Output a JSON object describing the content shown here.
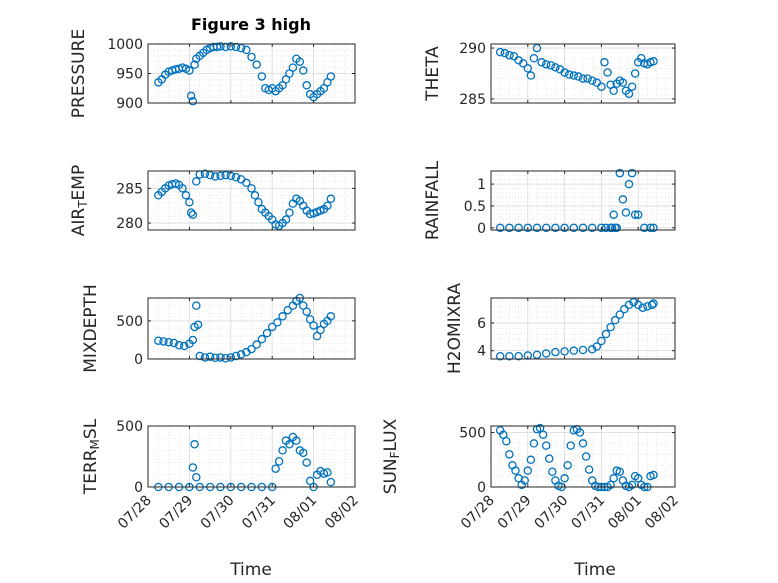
{
  "figure": {
    "title": "Figure 3 high"
  },
  "style": {
    "marker_color": "#0072BD",
    "axes_color": "#262626",
    "grid_color": "#d9d9d9"
  },
  "chart_data": [
    {
      "type": "scatter",
      "ylabel": "PRESSURE",
      "yticks": [
        "900",
        "950",
        "1000"
      ],
      "ylim": [
        900,
        1000
      ],
      "xlim": [
        "07/28",
        "08/02"
      ],
      "grid": true,
      "x": [
        "07/28 06:00",
        "07/28 08:00",
        "07/28 10:00",
        "07/28 12:00",
        "07/28 14:00",
        "07/28 16:00",
        "07/28 18:00",
        "07/28 20:00",
        "07/28 22:00",
        "07/29 00:00",
        "07/29 01:00",
        "07/29 02:00",
        "07/29 03:00",
        "07/29 04:00",
        "07/29 06:00",
        "07/29 08:00",
        "07/29 10:00",
        "07/29 12:00",
        "07/29 14:00",
        "07/29 16:00",
        "07/29 18:00",
        "07/29 21:00",
        "07/30 00:00",
        "07/30 03:00",
        "07/30 06:00",
        "07/30 09:00",
        "07/30 12:00",
        "07/30 15:00",
        "07/30 18:00",
        "07/30 20:00",
        "07/30 22:00",
        "07/31 00:00",
        "07/31 02:00",
        "07/31 04:00",
        "07/31 06:00",
        "07/31 08:00",
        "07/31 10:00",
        "07/31 12:00",
        "07/31 14:00",
        "07/31 16:00",
        "07/31 18:00",
        "07/31 20:00",
        "07/31 22:00",
        "08/01 00:00",
        "08/01 02:00",
        "08/01 04:00",
        "08/01 06:00",
        "08/01 08:00",
        "08/01 10:00"
      ],
      "y": [
        935,
        940,
        948,
        953,
        955,
        957,
        958,
        960,
        958,
        955,
        912,
        903,
        965,
        975,
        980,
        985,
        990,
        993,
        995,
        995,
        996,
        995,
        996,
        995,
        993,
        990,
        978,
        965,
        945,
        925,
        922,
        925,
        920,
        925,
        930,
        940,
        950,
        960,
        975,
        970,
        955,
        930,
        915,
        910,
        915,
        920,
        925,
        935,
        945
      ]
    },
    {
      "type": "scatter",
      "ylabel": "THETA",
      "yticks": [
        "285",
        "290"
      ],
      "ylim": [
        284.6,
        290.4
      ],
      "xlim": [
        "07/28",
        "08/02"
      ],
      "grid": true,
      "x": [
        "07/28 06:00",
        "07/28 09:00",
        "07/28 12:00",
        "07/28 15:00",
        "07/28 18:00",
        "07/28 21:00",
        "07/29 00:00",
        "07/29 02:00",
        "07/29 04:00",
        "07/29 06:00",
        "07/29 09:00",
        "07/29 12:00",
        "07/29 15:00",
        "07/29 18:00",
        "07/29 21:00",
        "07/30 00:00",
        "07/30 03:00",
        "07/30 06:00",
        "07/30 09:00",
        "07/30 12:00",
        "07/30 15:00",
        "07/30 18:00",
        "07/30 21:00",
        "07/31 00:00",
        "07/31 02:00",
        "07/31 04:00",
        "07/31 06:00",
        "07/31 08:00",
        "07/31 10:00",
        "07/31 12:00",
        "07/31 14:00",
        "07/31 16:00",
        "07/31 18:00",
        "07/31 20:00",
        "07/31 22:00",
        "08/01 00:00",
        "08/01 02:00",
        "08/01 04:00",
        "08/01 06:00",
        "08/01 08:00",
        "08/01 10:00"
      ],
      "y": [
        289.6,
        289.5,
        289.3,
        289.2,
        288.8,
        288.5,
        288.0,
        287.3,
        289.0,
        290.0,
        288.6,
        288.4,
        288.3,
        288.1,
        287.9,
        287.6,
        287.4,
        287.3,
        287.2,
        287.0,
        287.0,
        286.8,
        286.6,
        286.2,
        288.6,
        287.6,
        286.4,
        285.8,
        286.5,
        286.8,
        286.6,
        285.8,
        285.5,
        286.2,
        287.5,
        288.6,
        289.0,
        288.5,
        288.4,
        288.6,
        288.7
      ]
    },
    {
      "type": "scatter",
      "ylabel": "AIR_TEMP",
      "yticks": [
        "280",
        "285"
      ],
      "ylim": [
        279,
        287.5
      ],
      "xlim": [
        "07/28",
        "08/02"
      ],
      "grid": true,
      "x": [
        "07/28 06:00",
        "07/28 08:00",
        "07/28 10:00",
        "07/28 12:00",
        "07/28 14:00",
        "07/28 16:00",
        "07/28 18:00",
        "07/28 20:00",
        "07/28 22:00",
        "07/29 00:00",
        "07/29 01:00",
        "07/29 02:00",
        "07/29 04:00",
        "07/29 06:00",
        "07/29 09:00",
        "07/29 12:00",
        "07/29 15:00",
        "07/29 18:00",
        "07/29 21:00",
        "07/30 00:00",
        "07/30 03:00",
        "07/30 06:00",
        "07/30 09:00",
        "07/30 12:00",
        "07/30 14:00",
        "07/30 16:00",
        "07/30 18:00",
        "07/30 20:00",
        "07/30 22:00",
        "07/31 00:00",
        "07/31 02:00",
        "07/31 04:00",
        "07/31 06:00",
        "07/31 08:00",
        "07/31 10:00",
        "07/31 12:00",
        "07/31 14:00",
        "07/31 16:00",
        "07/31 18:00",
        "07/31 20:00",
        "07/31 22:00",
        "08/01 00:00",
        "08/01 02:00",
        "08/01 04:00",
        "08/01 06:00",
        "08/01 08:00",
        "08/01 10:00"
      ],
      "y": [
        284.0,
        284.5,
        285.0,
        285.4,
        285.6,
        285.7,
        285.5,
        285.0,
        284.0,
        283.0,
        281.5,
        281.2,
        286.0,
        287.0,
        287.1,
        286.9,
        286.7,
        286.8,
        286.9,
        286.8,
        286.6,
        286.3,
        285.8,
        285.0,
        284.0,
        283.0,
        282.0,
        281.5,
        281.0,
        280.5,
        279.8,
        279.6,
        280.0,
        280.5,
        281.5,
        282.8,
        283.5,
        283.2,
        282.5,
        281.8,
        281.3,
        281.4,
        281.6,
        281.8,
        282.0,
        282.5,
        283.5
      ]
    },
    {
      "type": "scatter",
      "ylabel": "RAINFALL",
      "yticks": [
        "0",
        "0.5",
        "1"
      ],
      "ylim": [
        -0.05,
        1.3
      ],
      "xlim": [
        "07/28",
        "08/02"
      ],
      "grid": true,
      "x": [
        "07/28 06:00",
        "07/28 12:00",
        "07/28 18:00",
        "07/29 00:00",
        "07/29 06:00",
        "07/29 12:00",
        "07/29 18:00",
        "07/30 00:00",
        "07/30 06:00",
        "07/30 12:00",
        "07/30 18:00",
        "07/31 00:00",
        "07/31 03:00",
        "07/31 06:00",
        "07/31 07:00",
        "07/31 08:00",
        "07/31 09:00",
        "07/31 10:00",
        "07/31 12:00",
        "07/31 14:00",
        "07/31 16:00",
        "07/31 18:00",
        "07/31 20:00",
        "07/31 22:00",
        "08/01 00:00",
        "08/01 04:00",
        "08/01 08:00",
        "08/01 10:00"
      ],
      "y": [
        0,
        0,
        0,
        0,
        0,
        0,
        0,
        0,
        0,
        0,
        0,
        0,
        0,
        0,
        0,
        0.3,
        0,
        0,
        1.25,
        0.65,
        0.35,
        1.0,
        1.25,
        0.3,
        0.3,
        0,
        0,
        0
      ]
    },
    {
      "type": "scatter",
      "ylabel": "MIXDEPTH",
      "yticks": [
        "0",
        "500"
      ],
      "ylim": [
        0,
        800
      ],
      "xlim": [
        "07/28",
        "08/02"
      ],
      "grid": true,
      "x": [
        "07/28 06:00",
        "07/28 09:00",
        "07/28 12:00",
        "07/28 15:00",
        "07/28 18:00",
        "07/28 21:00",
        "07/29 00:00",
        "07/29 02:00",
        "07/29 03:00",
        "07/29 04:00",
        "07/29 05:00",
        "07/29 06:00",
        "07/29 09:00",
        "07/29 12:00",
        "07/29 15:00",
        "07/29 18:00",
        "07/29 21:00",
        "07/30 00:00",
        "07/30 03:00",
        "07/30 06:00",
        "07/30 09:00",
        "07/30 12:00",
        "07/30 15:00",
        "07/30 18:00",
        "07/30 21:00",
        "07/31 00:00",
        "07/31 03:00",
        "07/31 06:00",
        "07/31 09:00",
        "07/31 12:00",
        "07/31 14:00",
        "07/31 16:00",
        "07/31 18:00",
        "07/31 20:00",
        "07/31 22:00",
        "08/01 00:00",
        "08/01 02:00",
        "08/01 04:00",
        "08/01 06:00",
        "08/01 08:00",
        "08/01 10:00"
      ],
      "y": [
        240,
        230,
        220,
        210,
        180,
        170,
        200,
        250,
        420,
        700,
        450,
        40,
        20,
        30,
        15,
        20,
        10,
        20,
        40,
        60,
        90,
        130,
        190,
        260,
        340,
        420,
        480,
        560,
        640,
        700,
        760,
        800,
        700,
        620,
        520,
        440,
        300,
        380,
        460,
        500,
        560
      ]
    },
    {
      "type": "scatter",
      "ylabel": "H2OMIXRA",
      "yticks": [
        "4",
        "6"
      ],
      "ylim": [
        3.4,
        7.8
      ],
      "xlim": [
        "07/28",
        "08/02"
      ],
      "grid": true,
      "x": [
        "07/28 06:00",
        "07/28 12:00",
        "07/28 18:00",
        "07/29 00:00",
        "07/29 06:00",
        "07/29 12:00",
        "07/29 18:00",
        "07/30 00:00",
        "07/30 06:00",
        "07/30 12:00",
        "07/30 18:00",
        "07/30 21:00",
        "07/31 00:00",
        "07/31 03:00",
        "07/31 06:00",
        "07/31 09:00",
        "07/31 12:00",
        "07/31 15:00",
        "07/31 18:00",
        "07/31 21:00",
        "08/01 00:00",
        "08/01 03:00",
        "08/01 06:00",
        "08/01 09:00",
        "08/01 10:00"
      ],
      "y": [
        3.6,
        3.6,
        3.6,
        3.65,
        3.7,
        3.8,
        3.9,
        3.95,
        4.0,
        4.05,
        4.1,
        4.3,
        4.7,
        5.2,
        5.7,
        6.2,
        6.6,
        7.0,
        7.3,
        7.5,
        7.3,
        7.1,
        7.2,
        7.3,
        7.4
      ]
    },
    {
      "type": "scatter",
      "ylabel": "TERR_MSL",
      "yticks": [
        "0",
        "500"
      ],
      "ylim": [
        0,
        500
      ],
      "xlim": [
        "07/28",
        "08/02"
      ],
      "grid": true,
      "x": [
        "07/28 06:00",
        "07/28 12:00",
        "07/28 18:00",
        "07/29 00:00",
        "07/29 02:00",
        "07/29 03:00",
        "07/29 04:00",
        "07/29 06:00",
        "07/29 12:00",
        "07/29 18:00",
        "07/30 00:00",
        "07/30 06:00",
        "07/30 12:00",
        "07/30 18:00",
        "07/31 00:00",
        "07/31 02:00",
        "07/31 04:00",
        "07/31 06:00",
        "07/31 08:00",
        "07/31 10:00",
        "07/31 12:00",
        "07/31 14:00",
        "07/31 16:00",
        "07/31 18:00",
        "07/31 20:00",
        "07/31 22:00",
        "08/01 00:00",
        "08/01 02:00",
        "08/01 04:00",
        "08/01 06:00",
        "08/01 08:00",
        "08/01 10:00"
      ],
      "y": [
        0,
        0,
        0,
        0,
        160,
        350,
        80,
        0,
        0,
        0,
        0,
        0,
        0,
        0,
        0,
        150,
        210,
        300,
        380,
        350,
        410,
        380,
        300,
        280,
        200,
        50,
        0,
        100,
        130,
        110,
        120,
        40
      ]
    },
    {
      "type": "scatter",
      "ylabel": "SUN_FLUX",
      "yticks": [
        "0",
        "500"
      ],
      "ylim": [
        0,
        560
      ],
      "xlim": [
        "07/28",
        "08/02"
      ],
      "grid": true,
      "x": [
        "07/28 06:00",
        "07/28 08:00",
        "07/28 10:00",
        "07/28 12:00",
        "07/28 14:00",
        "07/28 16:00",
        "07/28 18:00",
        "07/28 20:00",
        "07/28 22:00",
        "07/29 00:00",
        "07/29 02:00",
        "07/29 04:00",
        "07/29 06:00",
        "07/29 08:00",
        "07/29 10:00",
        "07/29 12:00",
        "07/29 14:00",
        "07/29 16:00",
        "07/29 18:00",
        "07/29 20:00",
        "07/29 22:00",
        "07/30 00:00",
        "07/30 02:00",
        "07/30 04:00",
        "07/30 06:00",
        "07/30 08:00",
        "07/30 10:00",
        "07/30 12:00",
        "07/30 14:00",
        "07/30 16:00",
        "07/30 18:00",
        "07/30 20:00",
        "07/30 22:00",
        "07/31 00:00",
        "07/31 02:00",
        "07/31 04:00",
        "07/31 06:00",
        "07/31 08:00",
        "07/31 10:00",
        "07/31 12:00",
        "07/31 14:00",
        "07/31 16:00",
        "07/31 18:00",
        "07/31 20:00",
        "07/31 22:00",
        "08/01 00:00",
        "08/01 02:00",
        "08/01 04:00",
        "08/01 06:00",
        "08/01 08:00",
        "08/01 10:00"
      ],
      "y": [
        520,
        480,
        420,
        300,
        200,
        150,
        80,
        20,
        60,
        150,
        250,
        400,
        530,
        540,
        480,
        380,
        260,
        140,
        60,
        10,
        0,
        80,
        200,
        380,
        520,
        530,
        500,
        400,
        280,
        160,
        60,
        10,
        0,
        0,
        0,
        0,
        20,
        80,
        150,
        140,
        60,
        10,
        0,
        20,
        100,
        80,
        20,
        0,
        0,
        100,
        110
      ]
    }
  ],
  "axes_text": {
    "xticks": [
      "07/28",
      "07/29",
      "07/30",
      "07/31",
      "08/01",
      "08/02"
    ],
    "xlabel_left": "Time",
    "xlabel_right": "Time"
  }
}
